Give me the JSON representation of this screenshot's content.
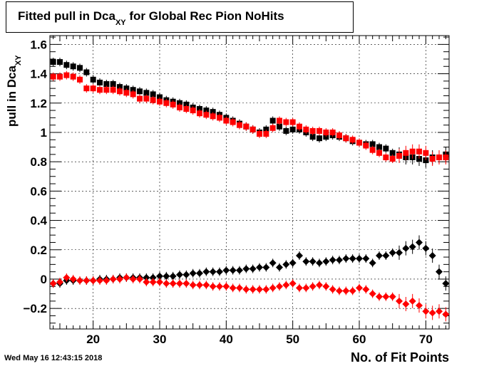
{
  "chart_data": {
    "type": "scatter",
    "title_main": "Fitted pull in Dca",
    "title_sub": "XY",
    "title_rest": " for Global Rec Pion NoHits",
    "ylabel_main": "pull in Dca",
    "ylabel_sub": "XY",
    "xlabel": "No. of Fit Points",
    "timestamp": "Wed May 16 12:43:15 2018",
    "xlim": [
      13.5,
      73.5
    ],
    "ylim": [
      -0.34,
      1.66
    ],
    "x_ticks": [
      20,
      30,
      40,
      50,
      60,
      70
    ],
    "y_ticks": [
      -0.2,
      0,
      0.2,
      0.4,
      0.6,
      0.8,
      1,
      1.2,
      1.4,
      1.6
    ],
    "y_tick_labels": [
      "−0.2",
      "0",
      "0.2",
      "0.4",
      "0.6",
      "0.8",
      "1",
      "1.2",
      "1.4",
      "1.6"
    ],
    "x": [
      14,
      15,
      16,
      17,
      18,
      19,
      20,
      21,
      22,
      23,
      24,
      25,
      26,
      27,
      28,
      29,
      30,
      31,
      32,
      33,
      34,
      35,
      36,
      37,
      38,
      39,
      40,
      41,
      42,
      43,
      44,
      45,
      46,
      47,
      48,
      49,
      50,
      51,
      52,
      53,
      54,
      55,
      56,
      57,
      58,
      59,
      60,
      61,
      62,
      63,
      64,
      65,
      66,
      67,
      68,
      69,
      70,
      71,
      72,
      73
    ],
    "series": [
      {
        "marker": "square",
        "color": "#000000",
        "values": [
          1.48,
          1.48,
          1.46,
          1.45,
          1.44,
          1.41,
          1.36,
          1.34,
          1.33,
          1.33,
          1.31,
          1.3,
          1.29,
          1.28,
          1.27,
          1.26,
          1.24,
          1.22,
          1.21,
          1.2,
          1.19,
          1.17,
          1.16,
          1.15,
          1.14,
          1.12,
          1.1,
          1.08,
          1.06,
          1.04,
          1.02,
          1.0,
          1.02,
          1.08,
          1.04,
          1.01,
          1.02,
          1.02,
          1.0,
          0.97,
          0.96,
          0.97,
          0.98,
          0.97,
          0.96,
          0.94,
          0.93,
          0.92,
          0.92,
          0.9,
          0.89,
          0.86,
          0.85,
          0.83,
          0.83,
          0.82,
          0.81,
          0.83,
          0.83,
          0.85
        ]
      },
      {
        "marker": "square",
        "color": "#ff0000",
        "values": [
          1.38,
          1.38,
          1.39,
          1.38,
          1.36,
          1.3,
          1.3,
          1.29,
          1.29,
          1.29,
          1.28,
          1.27,
          1.26,
          1.23,
          1.23,
          1.22,
          1.21,
          1.2,
          1.19,
          1.17,
          1.16,
          1.15,
          1.13,
          1.12,
          1.11,
          1.1,
          1.08,
          1.07,
          1.05,
          1.04,
          1.02,
          0.99,
          0.99,
          1.03,
          1.08,
          1.07,
          1.07,
          1.04,
          1.02,
          1.01,
          1.01,
          1.0,
          1.0,
          0.98,
          0.96,
          0.95,
          0.93,
          0.91,
          0.88,
          0.86,
          0.83,
          0.82,
          0.84,
          0.86,
          0.87,
          0.87,
          0.86,
          0.82,
          0.83,
          0.83
        ]
      },
      {
        "marker": "diamond",
        "color": "#000000",
        "values": [
          -0.03,
          -0.03,
          -0.01,
          -0.01,
          -0.01,
          -0.01,
          -0.01,
          0.0,
          0.0,
          0.0,
          0.01,
          0.01,
          0.01,
          0.01,
          0.01,
          0.01,
          0.02,
          0.02,
          0.02,
          0.03,
          0.03,
          0.04,
          0.04,
          0.05,
          0.05,
          0.05,
          0.06,
          0.06,
          0.06,
          0.07,
          0.07,
          0.08,
          0.08,
          0.11,
          0.08,
          0.1,
          0.11,
          0.16,
          0.12,
          0.12,
          0.11,
          0.12,
          0.13,
          0.13,
          0.14,
          0.14,
          0.14,
          0.14,
          0.11,
          0.16,
          0.16,
          0.18,
          0.18,
          0.21,
          0.22,
          0.25,
          0.21,
          0.16,
          0.05,
          -0.03
        ]
      },
      {
        "marker": "diamond",
        "color": "#ff0000",
        "values": [
          -0.03,
          -0.02,
          0.01,
          0.0,
          -0.01,
          -0.01,
          -0.01,
          -0.01,
          -0.01,
          0.0,
          0.0,
          0.01,
          0.0,
          0.0,
          -0.02,
          -0.02,
          -0.02,
          -0.03,
          -0.03,
          -0.03,
          -0.03,
          -0.04,
          -0.04,
          -0.04,
          -0.05,
          -0.05,
          -0.05,
          -0.06,
          -0.06,
          -0.07,
          -0.07,
          -0.07,
          -0.07,
          -0.06,
          -0.05,
          -0.04,
          -0.03,
          -0.06,
          -0.06,
          -0.05,
          -0.04,
          -0.05,
          -0.07,
          -0.08,
          -0.08,
          -0.08,
          -0.06,
          -0.07,
          -0.1,
          -0.12,
          -0.12,
          -0.12,
          -0.15,
          -0.17,
          -0.15,
          -0.18,
          -0.22,
          -0.23,
          -0.22,
          -0.24
        ]
      }
    ]
  }
}
